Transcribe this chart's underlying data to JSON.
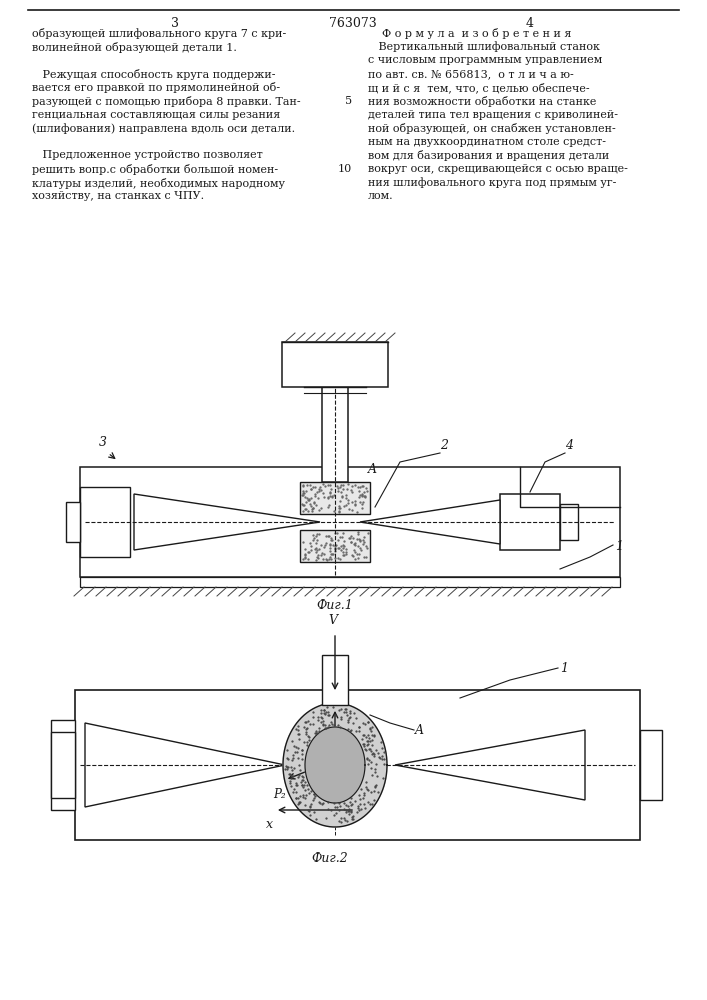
{
  "bg_color": "#ffffff",
  "text_color": "#1a1a1a",
  "line_color": "#1a1a1a",
  "page_number_left": "3",
  "page_number_center": "763073",
  "page_number_right": "4",
  "left_col_lines": [
    "образующей шлифовального круга 7 с кри-",
    "волинейной образующей детали 1.",
    "",
    "   Режущая способность круга поддержи-",
    "вается его правкой по прямолинейной об-",
    "разующей с помощью прибора 8 правки. Тан-",
    "генциальная составляющая силы резания",
    "(шлифования) направлена вдоль оси детали.",
    "",
    "   Предложенное устройство позволяет",
    "решить вопр.с обработки большой номен-",
    "клатуры изделий, необходимых народному",
    "хозяйству, на станках с ЧПУ."
  ],
  "right_col_lines": [
    "Ф о р м у л а  и з о б р е т е н и я",
    "   Вертикальный шлифовальный станок",
    "с числовым программным управлением",
    "по авт. св. № 656813,  о т л и ч а ю-",
    "щ и й с я  тем, что, с целью обеспече-",
    "ния возможности обработки на станке",
    "деталей типа тел вращения с криволиней-",
    "ной образующей, он снабжен установлен-",
    "ным на двухкоординатном столе средст-",
    "вом для базирования и вращения детали",
    "вокруг оси, скрещивающейся с осью враще-",
    "ния шлифовального круга под прямым уг-",
    "лом."
  ],
  "right_col_line_numbers": [
    null,
    null,
    null,
    null,
    null,
    "5",
    null,
    null,
    null,
    null,
    "10",
    null,
    null
  ],
  "fig1_caption": "Фиг.1",
  "fig2_caption": "Фиг.2",
  "hatch_color": "#444444",
  "stipple_color": "#666666"
}
